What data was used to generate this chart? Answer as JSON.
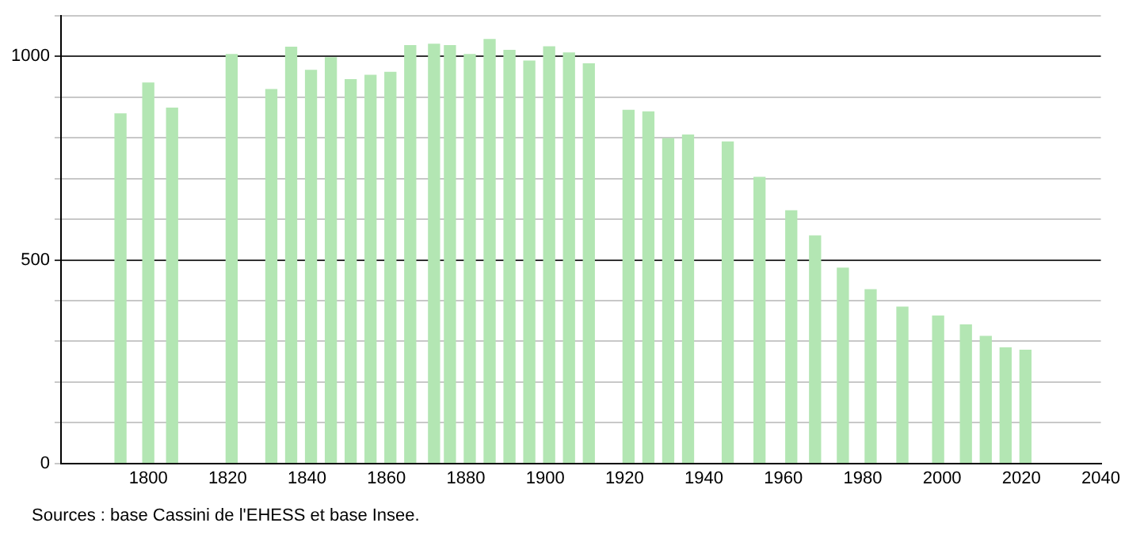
{
  "chart_data": {
    "type": "bar",
    "x": [
      1793,
      1800,
      1806,
      1821,
      1831,
      1836,
      1841,
      1846,
      1851,
      1856,
      1861,
      1866,
      1872,
      1876,
      1881,
      1886,
      1891,
      1896,
      1901,
      1906,
      1911,
      1921,
      1926,
      1931,
      1936,
      1946,
      1954,
      1962,
      1968,
      1975,
      1982,
      1990,
      1999,
      2006,
      2011,
      2016,
      2021
    ],
    "values": [
      859,
      935,
      873,
      1005,
      919,
      1023,
      966,
      997,
      943,
      954,
      961,
      1027,
      1030,
      1027,
      1005,
      1042,
      1015,
      989,
      1024,
      1009,
      982,
      868,
      864,
      798,
      807,
      790,
      703,
      621,
      559,
      480,
      427,
      384,
      362,
      340,
      312,
      284,
      278
    ],
    "color": "#b3e6b3",
    "xlim": [
      1778,
      2040
    ],
    "xticks": [
      1800,
      1820,
      1840,
      1860,
      1880,
      1900,
      1920,
      1940,
      1960,
      1980,
      2000,
      2020,
      2040
    ],
    "ylim": [
      0,
      1100
    ],
    "yticks": [
      0,
      {
        "value": 100,
        "label": null
      },
      {
        "value": 200,
        "label": null
      },
      {
        "value": 300,
        "label": null
      },
      {
        "value": 400,
        "label": null
      },
      500,
      {
        "value": 600,
        "label": null
      },
      {
        "value": 700,
        "label": null
      },
      {
        "value": 800,
        "label": null
      },
      {
        "value": 900,
        "label": null
      },
      1000,
      {
        "value": 1100,
        "label": null
      }
    ],
    "grid": "y",
    "annotations": [
      "Sources : base Cassini de l'EHESS et base Insee."
    ]
  }
}
